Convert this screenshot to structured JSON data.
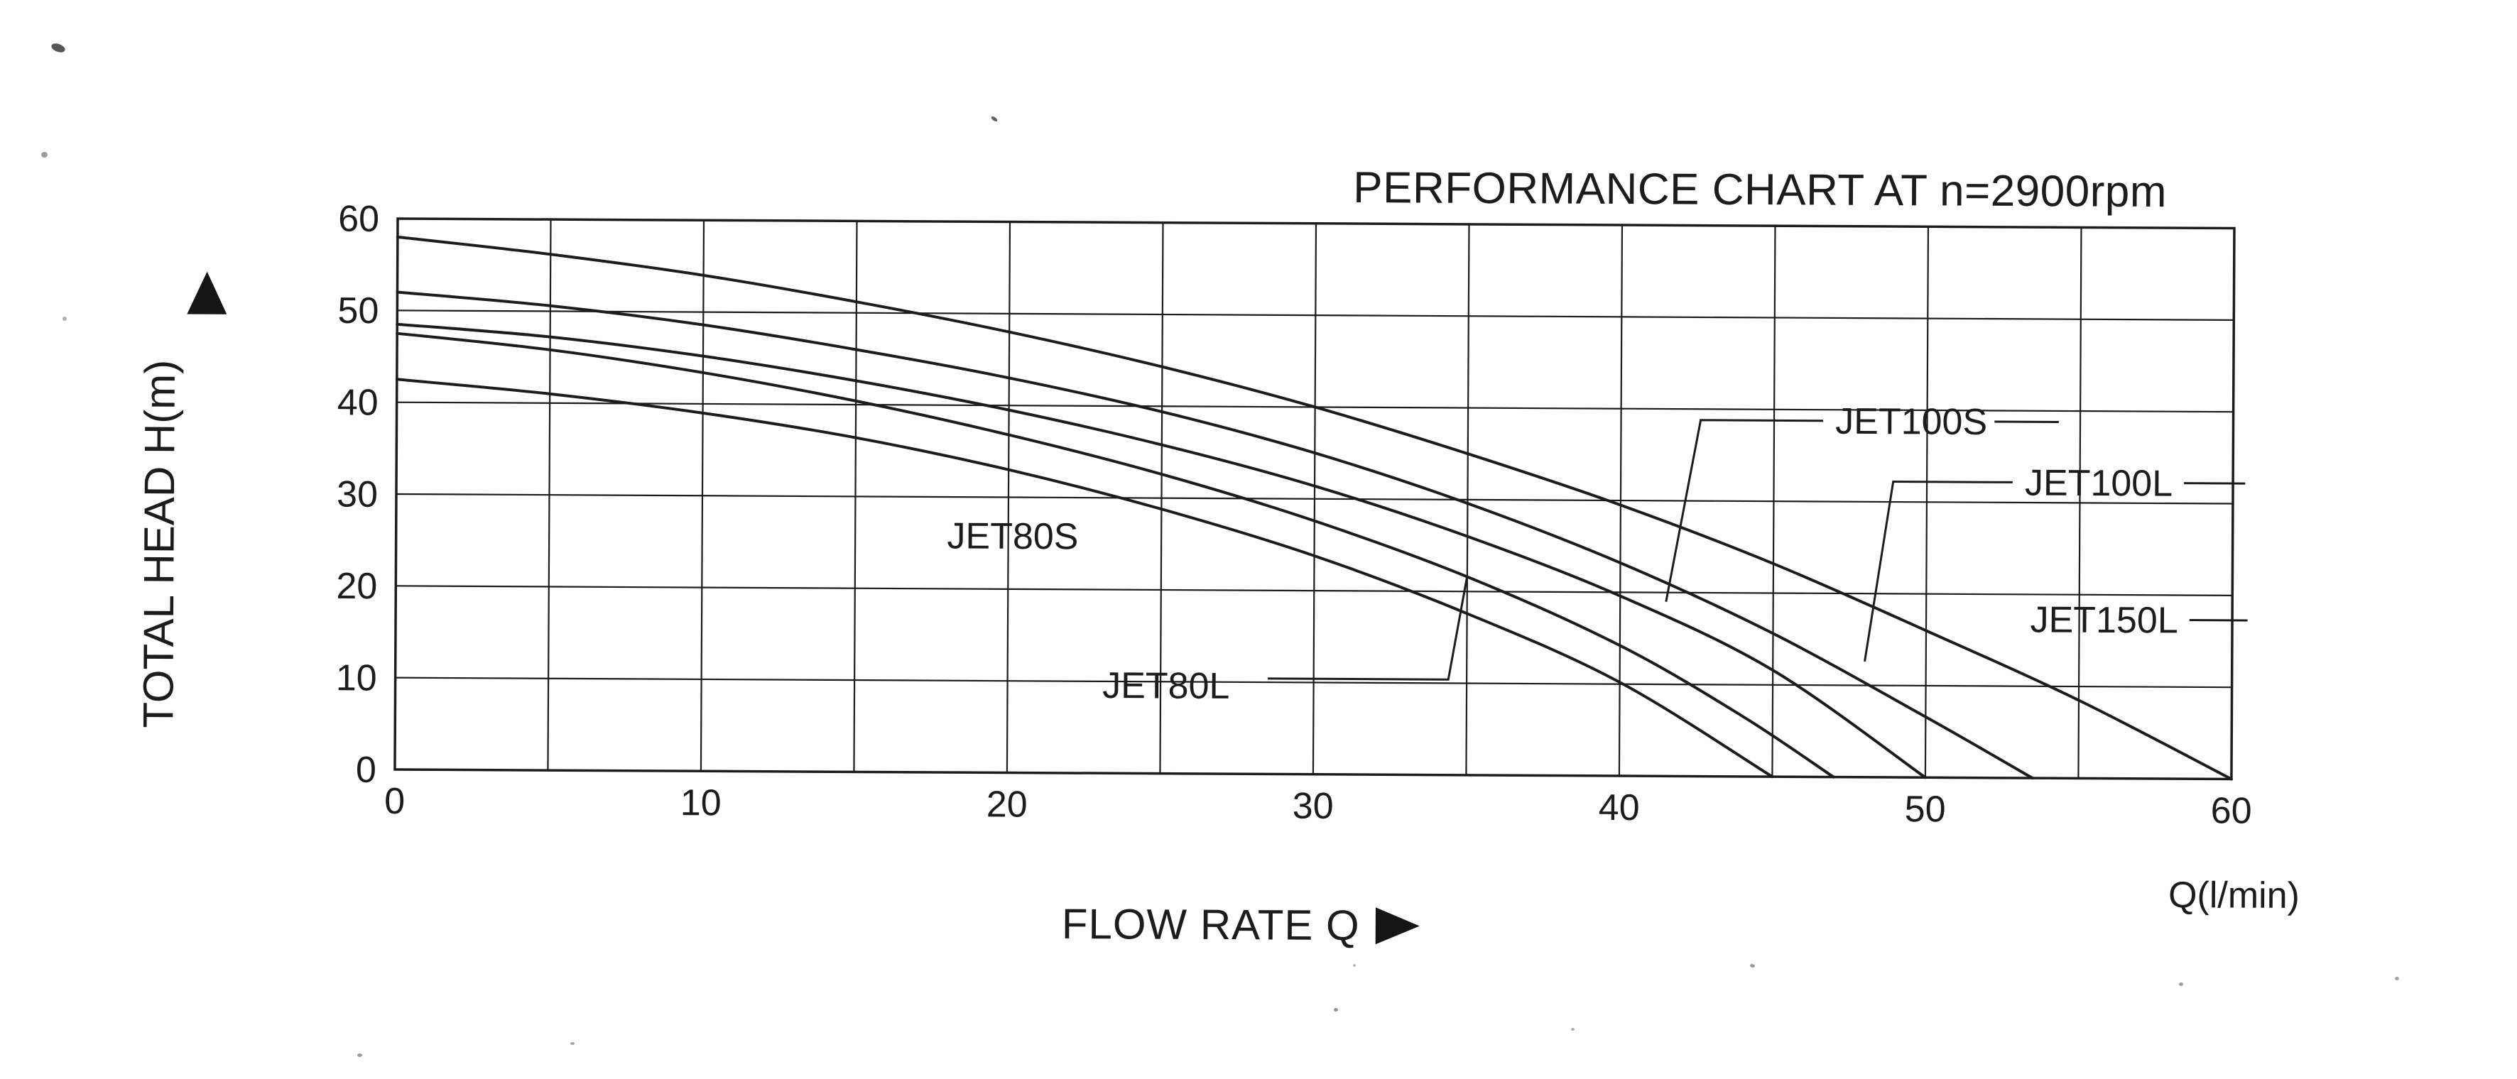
{
  "page": {
    "background_color": "#fefefe",
    "ink_color": "#1c1c1c"
  },
  "header": {
    "title": "PERFORMANCE CHART AT n=2900rpm"
  },
  "axes": {
    "y_label": "TOTAL HEAD H(m)",
    "x_label": "FLOW RATE Q",
    "x_unit": "Q(l/min)"
  },
  "chart_data": {
    "type": "line",
    "title": "PERFORMANCE CHART AT n=2900rpm",
    "xlabel": "FLOW RATE Q (l/min)",
    "ylabel": "TOTAL HEAD H(m)",
    "xlim": [
      0,
      60
    ],
    "ylim": [
      0,
      60
    ],
    "x_ticks": [
      0,
      10,
      20,
      30,
      40,
      50,
      60
    ],
    "y_ticks": [
      0,
      10,
      20,
      30,
      40,
      50,
      60
    ],
    "x_grid_step": 5,
    "y_grid_step": 10,
    "grid": true,
    "legend_position": "inline-labels",
    "line_color": "#1c1c1c",
    "series": [
      {
        "name": "JET150L",
        "points": [
          [
            0,
            58
          ],
          [
            5,
            56.2
          ],
          [
            10,
            54
          ],
          [
            15,
            51.2
          ],
          [
            20,
            48
          ],
          [
            25,
            44.3
          ],
          [
            30,
            40
          ],
          [
            35,
            35
          ],
          [
            40,
            29.5
          ],
          [
            45,
            23.2
          ],
          [
            50,
            16
          ],
          [
            55,
            8.5
          ],
          [
            60,
            0
          ]
        ]
      },
      {
        "name": "JET100L",
        "points": [
          [
            0,
            52
          ],
          [
            5,
            50.6
          ],
          [
            10,
            48.6
          ],
          [
            15,
            46
          ],
          [
            20,
            43
          ],
          [
            25,
            39.4
          ],
          [
            30,
            35
          ],
          [
            35,
            29.6
          ],
          [
            40,
            23.2
          ],
          [
            45,
            15.6
          ],
          [
            50,
            6.6
          ],
          [
            53.5,
            0
          ]
        ]
      },
      {
        "name": "JET100S",
        "points": [
          [
            0,
            48.5
          ],
          [
            5,
            47.2
          ],
          [
            10,
            45.2
          ],
          [
            15,
            42.6
          ],
          [
            20,
            39.5
          ],
          [
            25,
            35.8
          ],
          [
            30,
            31.4
          ],
          [
            35,
            26
          ],
          [
            40,
            19.6
          ],
          [
            45,
            11.6
          ],
          [
            50,
            0
          ]
        ]
      },
      {
        "name": "JET80L",
        "points": [
          [
            0,
            47.5
          ],
          [
            5,
            45.8
          ],
          [
            10,
            43.4
          ],
          [
            15,
            40.4
          ],
          [
            20,
            36.8
          ],
          [
            25,
            32.6
          ],
          [
            30,
            27.6
          ],
          [
            35,
            21.6
          ],
          [
            40,
            14.2
          ],
          [
            44,
            6.6
          ],
          [
            47,
            0
          ]
        ]
      },
      {
        "name": "JET80S",
        "points": [
          [
            0,
            42.5
          ],
          [
            5,
            41
          ],
          [
            10,
            39
          ],
          [
            15,
            36.4
          ],
          [
            20,
            33
          ],
          [
            25,
            28.8
          ],
          [
            30,
            23.8
          ],
          [
            35,
            17.6
          ],
          [
            40,
            10.2
          ],
          [
            45,
            0
          ]
        ]
      }
    ],
    "labels": [
      {
        "text": "JET80S",
        "x": 18.0,
        "y": 25.8,
        "leaders": []
      },
      {
        "text": "JET80L",
        "x": 23.1,
        "y": 9.6,
        "leaders": [
          [
            [
              28.5,
              10.4
            ],
            [
              34.4,
              10.4
            ],
            [
              35.0,
              21.7
            ]
          ]
        ]
      },
      {
        "text": "JET100S",
        "x": 47.0,
        "y": 38.8,
        "leaders": [
          [
            [
              46.6,
              38.8
            ],
            [
              42.6,
              38.8
            ],
            [
              41.5,
              19.0
            ]
          ],
          [
            [
              52.2,
              38.8
            ],
            [
              54.3,
              38.8
            ]
          ]
        ]
      },
      {
        "text": "JET100L",
        "x": 53.2,
        "y": 32.2,
        "leaders": [
          [
            [
              52.8,
              32.2
            ],
            [
              48.9,
              32.2
            ],
            [
              48.0,
              12.6
            ]
          ],
          [
            [
              58.4,
              32.2
            ],
            [
              60.4,
              32.2
            ]
          ]
        ]
      },
      {
        "text": "JET150L",
        "x": 53.4,
        "y": 17.3,
        "leaders": [
          [
            [
              58.6,
              17.3
            ],
            [
              60.5,
              17.3
            ]
          ]
        ]
      }
    ]
  }
}
